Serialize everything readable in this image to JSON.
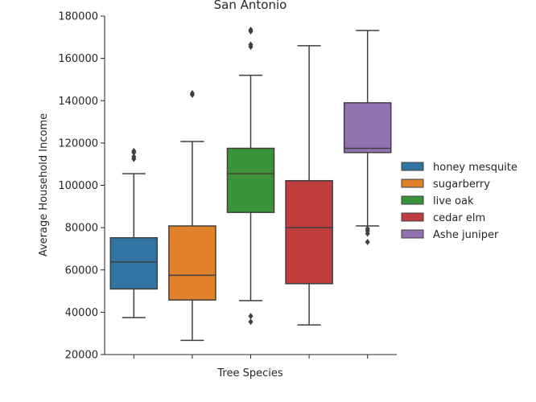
{
  "chart_data": {
    "type": "box",
    "title": "San Antonio",
    "xlabel": "Tree Species",
    "ylabel": "Average Household Income",
    "ylim": [
      20000,
      180000
    ],
    "yticks": [
      20000,
      40000,
      60000,
      80000,
      100000,
      120000,
      140000,
      160000,
      180000
    ],
    "ytick_labels": [
      "20000",
      "40000",
      "60000",
      "80000",
      "100000",
      "120000",
      "140000",
      "160000",
      "180000"
    ],
    "grid": false,
    "legend_position": "right",
    "series": [
      {
        "name": "honey mesquite",
        "color": "#3274a1",
        "whisker_low": 37500,
        "q1": 51000,
        "median": 63800,
        "q3": 75200,
        "whisker_high": 105500,
        "outliers": [
          112500,
          113500,
          115500,
          116200
        ]
      },
      {
        "name": "sugarberry",
        "color": "#e1812c",
        "whisker_low": 26700,
        "q1": 45800,
        "median": 57500,
        "q3": 80800,
        "whisker_high": 120700,
        "outliers": [
          142800,
          143500
        ]
      },
      {
        "name": "live oak",
        "color": "#3a923a",
        "whisker_low": 45500,
        "q1": 87200,
        "median": 105500,
        "q3": 117500,
        "whisker_high": 152000,
        "outliers": [
          35500,
          38200,
          165500,
          166500,
          172800,
          173500
        ]
      },
      {
        "name": "cedar elm",
        "color": "#c03d3e",
        "whisker_low": 34000,
        "q1": 53500,
        "median": 80000,
        "q3": 102200,
        "whisker_high": 166000,
        "outliers": []
      },
      {
        "name": "Ashe juniper",
        "color": "#9372b2",
        "whisker_low": 80800,
        "q1": 115500,
        "median": 117500,
        "q3": 139000,
        "whisker_high": 173200,
        "outliers": [
          73200,
          77200,
          78500,
          79500
        ]
      }
    ]
  }
}
